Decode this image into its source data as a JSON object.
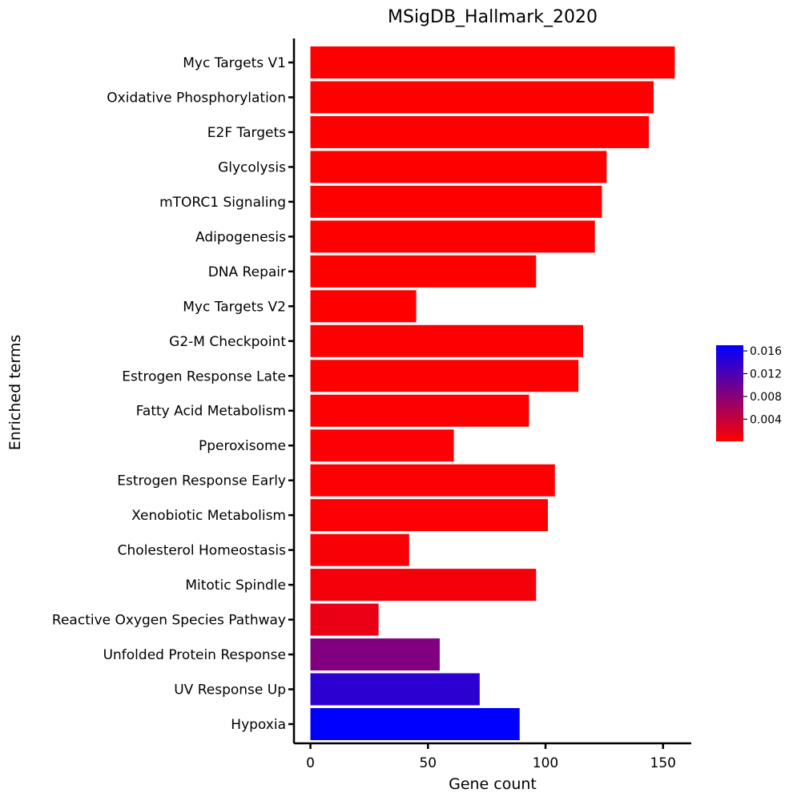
{
  "chart_data": {
    "type": "bar",
    "orientation": "horizontal",
    "title": "MSigDB_Hallmark_2020",
    "xlabel": "Gene count",
    "ylabel": "Enriched terms",
    "xlim": [
      -7,
      162
    ],
    "xticks": [
      "0",
      "50",
      "100",
      "150"
    ],
    "xtick_values": [
      0,
      50,
      100,
      150
    ],
    "categories": [
      "Myc Targets V1",
      "Oxidative Phosphorylation",
      "E2F Targets",
      "Glycolysis",
      "mTORC1 Signaling",
      "Adipogenesis",
      "DNA Repair",
      "Myc Targets V2",
      "G2-M Checkpoint",
      "Estrogen Response Late",
      "Fatty Acid Metabolism",
      "Pperoxisome",
      "Estrogen Response Early",
      "Xenobiotic Metabolism",
      "Cholesterol Homeostasis",
      "Mitotic Spindle",
      "Reactive Oxygen Species Pathway",
      "Unfolded Protein Response",
      "UV Response Up",
      "Hypoxia"
    ],
    "values": [
      155,
      146,
      144,
      126,
      124,
      121,
      96,
      45,
      116,
      114,
      93,
      61,
      104,
      101,
      42,
      96,
      29,
      55,
      72,
      89
    ],
    "color_values": [
      0.0001,
      0.0001,
      0.0001,
      0.0001,
      0.0001,
      0.0001,
      0.0001,
      0.0001,
      0.0002,
      0.0002,
      0.0002,
      0.0003,
      0.0003,
      0.0003,
      0.0005,
      0.0008,
      0.0015,
      0.0085,
      0.014,
      0.017
    ],
    "colorbar": {
      "min": 0.0001,
      "max": 0.017,
      "low_color": "#ff0000",
      "high_color": "#0000ff",
      "ticks": [
        "0.016",
        "0.012",
        "0.008",
        "0.004"
      ],
      "tick_values": [
        0.016,
        0.012,
        0.008,
        0.004
      ]
    },
    "grid": false,
    "legend": "colorbar-right"
  }
}
